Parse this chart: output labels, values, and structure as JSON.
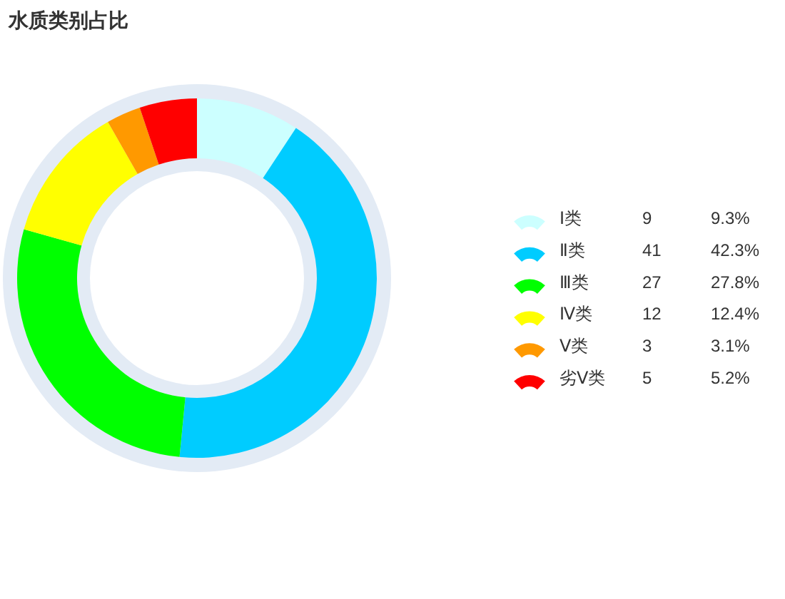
{
  "chart_data": {
    "type": "donut",
    "title": "水质类别占比",
    "categories": [
      "Ⅰ类",
      "Ⅱ类",
      "Ⅲ类",
      "Ⅳ类",
      "Ⅴ类",
      "劣Ⅴ类"
    ],
    "values": [
      9,
      41,
      27,
      12,
      3,
      5
    ],
    "annotations": [
      "9.3%",
      "42.3%",
      "27.8%",
      "12.4%",
      "3.1%",
      "5.2%"
    ],
    "data_labels": true,
    "colors": [
      "#ccffff",
      "#00ccff",
      "#00ff00",
      "#ffff00",
      "#ff9900",
      "#ff0000"
    ],
    "legend": "right"
  }
}
